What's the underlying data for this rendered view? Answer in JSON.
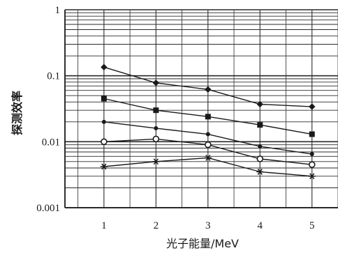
{
  "chart_data": {
    "type": "line",
    "title": "",
    "xlabel": "光子能量/MeV",
    "ylabel": "探测效率",
    "y_scale": "log",
    "xlim": [
      0.25,
      5.5
    ],
    "ylim": [
      0.001,
      1
    ],
    "x_ticks": [
      1,
      2,
      3,
      4,
      5
    ],
    "x_tick_labels": [
      "1",
      "2",
      "3",
      "4",
      "5"
    ],
    "y_ticks": [
      0.001,
      0.01,
      0.1,
      1
    ],
    "y_tick_labels": [
      "0.001",
      "0.01",
      "0.1",
      "1"
    ],
    "grid": true,
    "legend": "none",
    "colors": {
      "ink": "#1a1a1a",
      "grid": "#2a2a2a",
      "background": "#ffffff"
    },
    "series": [
      {
        "marker": "diamond",
        "x": [
          1,
          2,
          3,
          4,
          5
        ],
        "values": [
          0.135,
          0.078,
          0.062,
          0.037,
          0.034
        ]
      },
      {
        "marker": "square",
        "x": [
          1,
          2,
          3,
          4,
          5
        ],
        "values": [
          0.045,
          0.03,
          0.024,
          0.018,
          0.013
        ]
      },
      {
        "marker": "dot",
        "x": [
          1,
          2,
          3,
          4,
          5
        ],
        "values": [
          0.02,
          0.016,
          0.013,
          0.0085,
          0.0065
        ]
      },
      {
        "marker": "circle",
        "x": [
          1,
          2,
          3,
          4,
          5
        ],
        "values": [
          0.01,
          0.011,
          0.009,
          0.0055,
          0.0045
        ]
      },
      {
        "marker": "asterisk",
        "x": [
          1,
          2,
          3,
          4,
          5
        ],
        "values": [
          0.0042,
          0.005,
          0.0057,
          0.0035,
          0.003
        ]
      }
    ]
  }
}
